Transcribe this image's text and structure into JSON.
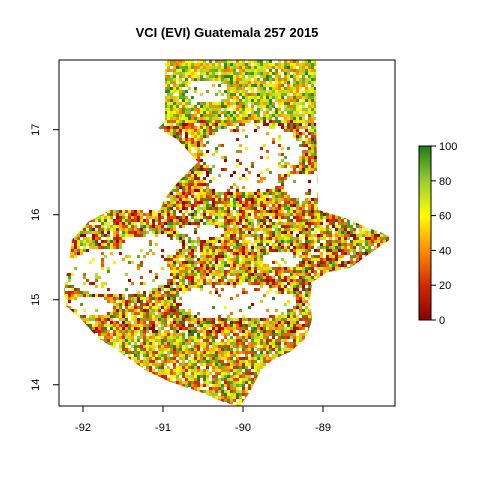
{
  "map": {
    "title": "VCI (EVI) Guatemala 257 2015",
    "x_axis": {
      "ticks": [
        {
          "value": -92,
          "label": "-92"
        },
        {
          "value": -91,
          "label": "-91"
        },
        {
          "value": -90,
          "label": "-90"
        },
        {
          "value": -89,
          "label": "-89"
        }
      ],
      "range": [
        -92.3,
        -88.1
      ]
    },
    "y_axis": {
      "ticks": [
        {
          "value": 14,
          "label": "14"
        },
        {
          "value": 15,
          "label": "15"
        },
        {
          "value": 16,
          "label": "16"
        },
        {
          "value": 17,
          "label": "17"
        }
      ],
      "range": [
        13.75,
        17.82
      ]
    },
    "legend": {
      "ticks": [
        {
          "value": 0,
          "label": "0"
        },
        {
          "value": 20,
          "label": "20"
        },
        {
          "value": 40,
          "label": "40"
        },
        {
          "value": 60,
          "label": "60"
        },
        {
          "value": 80,
          "label": "80"
        },
        {
          "value": 100,
          "label": "100"
        }
      ],
      "colors": [
        "#8b0000",
        "#d22b00",
        "#ff8c00",
        "#ffff00",
        "#9acd32",
        "#1e7d14"
      ]
    },
    "raster_seed": 257
  }
}
